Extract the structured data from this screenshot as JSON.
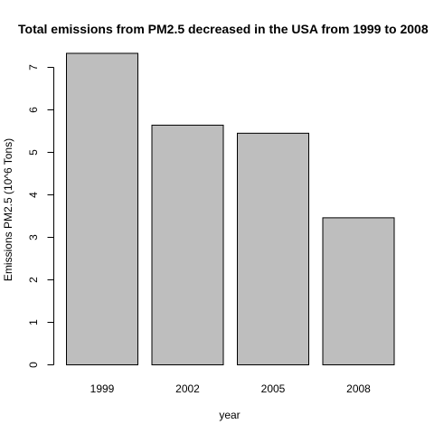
{
  "chart_data": {
    "type": "bar",
    "title": "Total emissions from PM2.5 decreased in the USA from 1999 to 2008",
    "xlabel": "year",
    "ylabel": "Emissions PM2.5 (10^6 Tons)",
    "categories": [
      "1999",
      "2002",
      "2005",
      "2008"
    ],
    "values": [
      7.33,
      5.64,
      5.45,
      3.46
    ],
    "ylim": [
      0,
      7
    ],
    "yticks": [
      "0",
      "1",
      "2",
      "3",
      "4",
      "5",
      "6",
      "7"
    ],
    "bar_color": "#bebebe",
    "bar_border_color": "#000000",
    "grid": false,
    "legend": "none"
  }
}
